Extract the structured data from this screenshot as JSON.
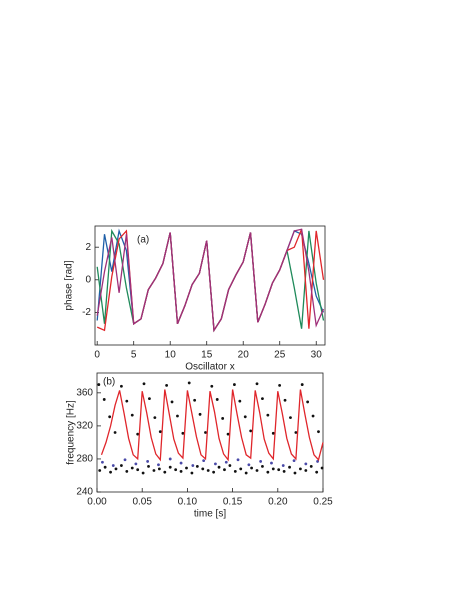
{
  "chart_data": [
    {
      "type": "line",
      "annotation": "(a)",
      "xlabel": "Oscillator x",
      "ylabel": "phase [rad]",
      "x": [
        0,
        1,
        2,
        3,
        4,
        5,
        6,
        7,
        8,
        9,
        10,
        11,
        12,
        13,
        14,
        15,
        16,
        17,
        18,
        19,
        20,
        21,
        22,
        23,
        24,
        25,
        26,
        27,
        28,
        29,
        30,
        31
      ],
      "xlim": [
        -0.3,
        31.2
      ],
      "ylim": [
        -4.0,
        3.3
      ],
      "xticks": [
        0,
        5,
        10,
        15,
        20,
        25,
        30
      ],
      "yticks": [
        -2,
        0,
        2
      ],
      "series": [
        {
          "color": "#1f5fa8",
          "values": [
            -2.5,
            2.8,
            0.5,
            3.0,
            1.8,
            -2.7,
            -2.4,
            -0.6,
            0.1,
            1.0,
            2.9,
            -2.7,
            -1.6,
            -0.3,
            0.4,
            2.4,
            -3.1,
            -2.4,
            -0.6,
            0.3,
            1.1,
            2.9,
            -2.6,
            -1.5,
            -0.2,
            0.6,
            1.8,
            3.0,
            2.8,
            1.0,
            -1.0,
            -2.0
          ]
        },
        {
          "color": "#1f8a5a",
          "values": [
            0.8,
            -2.7,
            3.0,
            2.2,
            -0.5,
            -2.7,
            -2.4,
            -0.6,
            0.1,
            1.0,
            2.9,
            -2.7,
            -1.6,
            -0.3,
            0.4,
            2.4,
            -3.1,
            -2.4,
            -0.6,
            0.3,
            1.1,
            2.9,
            -2.6,
            -1.5,
            -0.2,
            0.6,
            1.8,
            -0.5,
            -3.0,
            3.0,
            -0.2,
            -2.5
          ]
        },
        {
          "color": "#e0262b",
          "values": [
            -2.9,
            -3.1,
            0.2,
            2.5,
            3.0,
            -2.7,
            -2.4,
            -0.6,
            0.1,
            1.0,
            2.9,
            -2.7,
            -1.6,
            -0.3,
            0.4,
            2.4,
            -3.1,
            -2.4,
            -0.6,
            0.3,
            1.1,
            2.9,
            -2.6,
            -1.5,
            -0.2,
            0.6,
            1.8,
            2.0,
            3.1,
            -3.0,
            3.0,
            0.0
          ]
        },
        {
          "color": "#a0307a",
          "values": [
            -2.2,
            0.5,
            2.6,
            -0.8,
            2.8,
            -2.7,
            -2.4,
            -0.6,
            0.1,
            1.0,
            2.9,
            -2.7,
            -1.6,
            -0.3,
            0.4,
            2.4,
            -3.1,
            -2.4,
            -0.6,
            0.3,
            1.1,
            2.9,
            -2.6,
            -1.5,
            -0.2,
            0.6,
            1.8,
            3.0,
            3.1,
            0.5,
            -2.8,
            -1.8
          ]
        }
      ]
    },
    {
      "type": "scatter",
      "annotation": "(b)",
      "xlabel": "time [s]",
      "ylabel": "frequency [Hz]",
      "xlim": [
        0,
        0.25
      ],
      "ylim": [
        240,
        384
      ],
      "xticks": [
        {
          "value": 0,
          "label": "0.00"
        },
        {
          "value": 0.05,
          "label": "0.05"
        },
        {
          "value": 0.1,
          "label": "0.10"
        },
        {
          "value": 0.15,
          "label": "0.15"
        },
        {
          "value": 0.2,
          "label": "0.20"
        },
        {
          "value": 0.25,
          "label": "0.25"
        }
      ],
      "yticks": [
        240,
        280,
        320,
        360
      ],
      "series": [
        {
          "color": "#111111",
          "x": [
            0.003,
            0.009,
            0.015,
            0.021,
            0.027,
            0.033,
            0.039,
            0.045,
            0.051,
            0.057,
            0.063,
            0.069,
            0.075,
            0.081,
            0.087,
            0.093,
            0.099,
            0.105,
            0.111,
            0.117,
            0.123,
            0.129,
            0.135,
            0.141,
            0.147,
            0.153,
            0.159,
            0.165,
            0.171,
            0.177,
            0.183,
            0.189,
            0.195,
            0.201,
            0.207,
            0.213,
            0.219,
            0.225,
            0.231,
            0.237,
            0.243,
            0.249
          ],
          "values": [
            266,
            270,
            264,
            268,
            272,
            265,
            269,
            267,
            263,
            271,
            266,
            268,
            264,
            270,
            267,
            265,
            269,
            263,
            271,
            268,
            266,
            264,
            270,
            267,
            272,
            265,
            268,
            263,
            269,
            266,
            271,
            264,
            268,
            267,
            265,
            270,
            263,
            268,
            266,
            271,
            264,
            269
          ]
        },
        {
          "color": "#111111",
          "x": [
            0.002,
            0.008,
            0.014,
            0.02,
            0.027,
            0.033,
            0.039,
            0.045,
            0.052,
            0.058,
            0.064,
            0.07,
            0.077,
            0.083,
            0.089,
            0.095,
            0.102,
            0.108,
            0.114,
            0.12,
            0.127,
            0.133,
            0.139,
            0.145,
            0.152,
            0.158,
            0.164,
            0.17,
            0.177,
            0.183,
            0.189,
            0.195,
            0.202,
            0.208,
            0.214,
            0.22,
            0.227,
            0.233,
            0.239,
            0.245
          ],
          "values": [
            370,
            352,
            331,
            312,
            368,
            350,
            333,
            310,
            371,
            353,
            330,
            313,
            369,
            349,
            332,
            311,
            372,
            351,
            334,
            312,
            368,
            352,
            329,
            310,
            370,
            350,
            331,
            314,
            371,
            353,
            333,
            311,
            369,
            351,
            330,
            312,
            370,
            349,
            332,
            313
          ]
        },
        {
          "color": "#4a4aa8",
          "x": [
            0.006,
            0.018,
            0.031,
            0.043,
            0.056,
            0.068,
            0.081,
            0.093,
            0.106,
            0.118,
            0.131,
            0.143,
            0.156,
            0.168,
            0.181,
            0.193,
            0.206,
            0.218,
            0.231,
            0.244
          ],
          "values": [
            276,
            272,
            279,
            274,
            277,
            273,
            280,
            275,
            272,
            278,
            274,
            276,
            279,
            273,
            277,
            275,
            272,
            278,
            274,
            277
          ]
        },
        {
          "color": "#e0262b",
          "mode": "line",
          "x": [
            0.005,
            0.01,
            0.015,
            0.02,
            0.025,
            0.03,
            0.035,
            0.04,
            0.045,
            0.05,
            0.055,
            0.06,
            0.065,
            0.07,
            0.075,
            0.08,
            0.085,
            0.09,
            0.095,
            0.1,
            0.105,
            0.11,
            0.115,
            0.12,
            0.125,
            0.13,
            0.135,
            0.14,
            0.145,
            0.15,
            0.155,
            0.16,
            0.165,
            0.17,
            0.175,
            0.18,
            0.185,
            0.19,
            0.195,
            0.2,
            0.205,
            0.21,
            0.215,
            0.22,
            0.225,
            0.23,
            0.235,
            0.24,
            0.245,
            0.25
          ],
          "values": [
            285,
            300,
            320,
            345,
            363,
            335,
            305,
            285,
            280,
            362,
            336,
            306,
            286,
            279,
            364,
            334,
            304,
            287,
            281,
            363,
            335,
            307,
            285,
            280,
            362,
            337,
            305,
            286,
            279,
            364,
            334,
            306,
            285,
            281,
            363,
            336,
            304,
            287,
            280,
            362,
            335,
            305,
            286,
            280,
            364,
            334,
            306,
            285,
            279,
            300
          ]
        }
      ]
    }
  ]
}
